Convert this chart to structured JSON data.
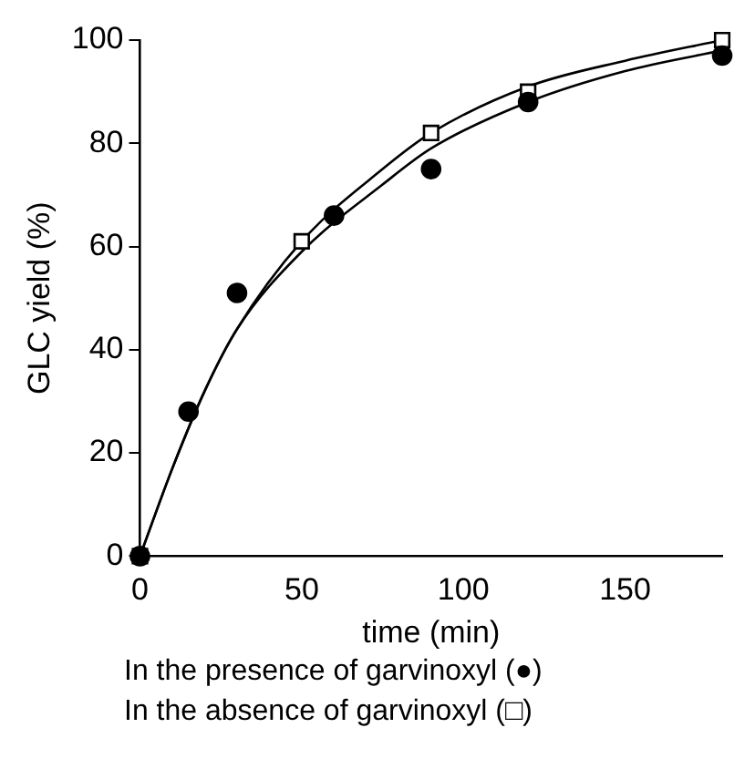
{
  "chart_data": {
    "type": "scatter",
    "xlabel": "time (min)",
    "ylabel": "GLC yield (%)",
    "xlim": [
      0,
      180
    ],
    "xticks": [
      0,
      50,
      100,
      150
    ],
    "ylim": [
      0,
      100
    ],
    "yticks": [
      0,
      20,
      40,
      60,
      80,
      100
    ],
    "grid": false,
    "legend": false,
    "series": [
      {
        "type": "scatter",
        "marker": "circle",
        "color": "#000000",
        "x": [
          0,
          15,
          30,
          60,
          90,
          120,
          180
        ],
        "values": [
          0,
          28,
          51,
          66,
          75,
          88,
          97
        ]
      },
      {
        "type": "scatter",
        "marker": "square",
        "color": "#000000",
        "x": [
          0,
          50,
          90,
          120,
          180
        ],
        "values": [
          0,
          61,
          82,
          90,
          100
        ]
      },
      {
        "type": "line",
        "marker": "none",
        "color": "#000000",
        "x": [
          0,
          10,
          20,
          30,
          50,
          75,
          90,
          120,
          150,
          180
        ],
        "values": [
          0,
          17,
          32,
          44,
          61,
          75,
          82,
          91,
          96,
          100
        ]
      },
      {
        "type": "line",
        "marker": "none",
        "color": "#000000",
        "x": [
          0,
          10,
          20,
          30,
          50,
          75,
          90,
          120,
          150,
          180
        ],
        "values": [
          0,
          17,
          32,
          44,
          59,
          72,
          79,
          88,
          94,
          98
        ]
      }
    ],
    "annotations": [
      "In the presence of garvinoxyl (●)",
      "In the absence of garvinoxyl (□)"
    ]
  }
}
